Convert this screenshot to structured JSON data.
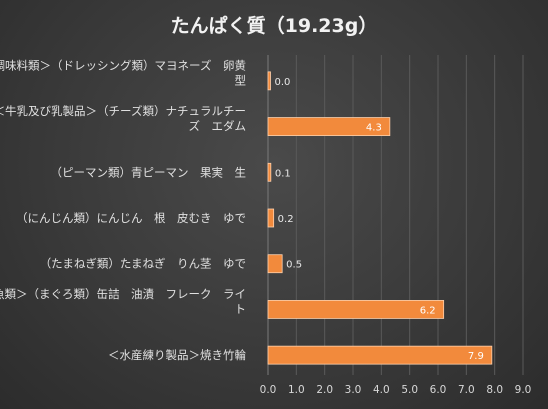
{
  "chart_data": {
    "type": "bar",
    "orientation": "horizontal",
    "title": "たんぱく質（19.23g）",
    "categories": [
      [
        "＜調味料類＞（ドレッシング類）マヨネーズ　卵黄",
        "型"
      ],
      [
        "＜牛乳及び乳製品＞（チーズ類）ナチュラルチー",
        "ズ　エダム"
      ],
      [
        "（ピーマン類）青ピーマン　果実　生"
      ],
      [
        "（にんじん類）にんじん　根　皮むき　ゆで"
      ],
      [
        "（たまねぎ類）たまねぎ　りん茎　ゆで"
      ],
      [
        "＜魚類＞（まぐろ類）缶詰　油漬　フレーク　ライ",
        "ト"
      ],
      [
        "＜水産練り製品＞焼き竹輪"
      ]
    ],
    "values": [
      0.0,
      4.3,
      0.1,
      0.2,
      0.5,
      6.2,
      7.9
    ],
    "value_labels": [
      "0.0",
      "4.3",
      "0.1",
      "0.2",
      "0.5",
      "6.2",
      "7.9"
    ],
    "xlim": [
      0,
      9
    ],
    "xticks": [
      "0.0",
      "1.0",
      "2.0",
      "3.0",
      "4.0",
      "5.0",
      "6.0",
      "7.0",
      "8.0",
      "9.0"
    ],
    "grid": true,
    "colors": {
      "bar": "#f28a3c",
      "background": "#3a3a3a",
      "text": "#e6e6e6"
    }
  }
}
